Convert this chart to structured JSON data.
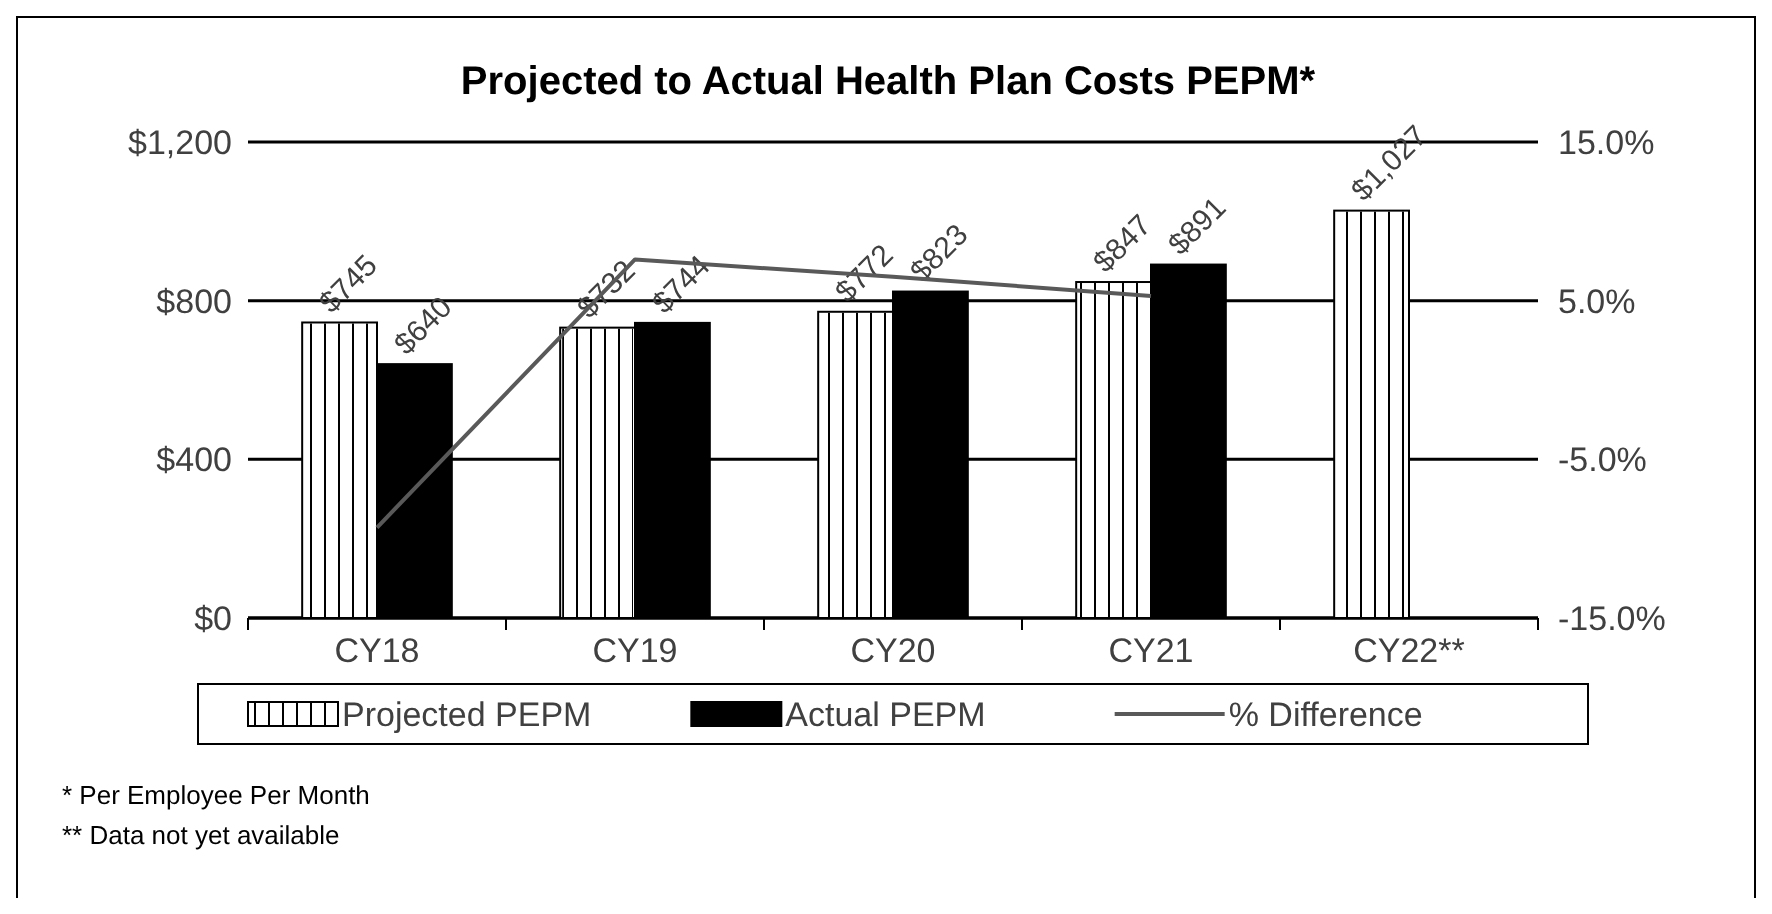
{
  "chart_data": {
    "type": "bar",
    "title": "Projected to Actual Health Plan Costs PEPM*",
    "categories": [
      "CY18",
      "CY19",
      "CY20",
      "CY21",
      "CY22**"
    ],
    "series": [
      {
        "name": "Projected PEPM",
        "color": "#ffffff",
        "values": [
          745,
          732,
          772,
          847,
          1027
        ],
        "value_labels": [
          "$745",
          "$732",
          "$772",
          "$847",
          "$1,027"
        ]
      },
      {
        "name": "Actual PEPM",
        "color": "#000000",
        "values": [
          640,
          744,
          823,
          891,
          null
        ],
        "value_labels": [
          "$640",
          "$744",
          "$823",
          "$891",
          null
        ]
      },
      {
        "name": "% Difference",
        "type": "line",
        "axis": "y2",
        "color": "#595959",
        "values": [
          -9.3,
          7.6,
          6.5,
          5.3,
          null
        ]
      }
    ],
    "ylim": [
      0,
      1200
    ],
    "yticks": [
      {
        "value": 0,
        "label": "$0"
      },
      {
        "value": 400,
        "label": "$400"
      },
      {
        "value": 800,
        "label": "$800"
      },
      {
        "value": 1200,
        "label": "$1,200"
      }
    ],
    "y2lim": [
      -15,
      15
    ],
    "y2ticks": [
      {
        "value": -15,
        "label": "-15.0%"
      },
      {
        "value": -5,
        "label": "-5.0%"
      },
      {
        "value": 5,
        "label": "5.0%"
      },
      {
        "value": 15,
        "label": "15.0%"
      }
    ],
    "grid": "y",
    "legend": "bottom",
    "marker": "none",
    "line_style": "solid",
    "annotations": [
      "* Per Employee Per Month",
      "** Data not yet available"
    ]
  }
}
